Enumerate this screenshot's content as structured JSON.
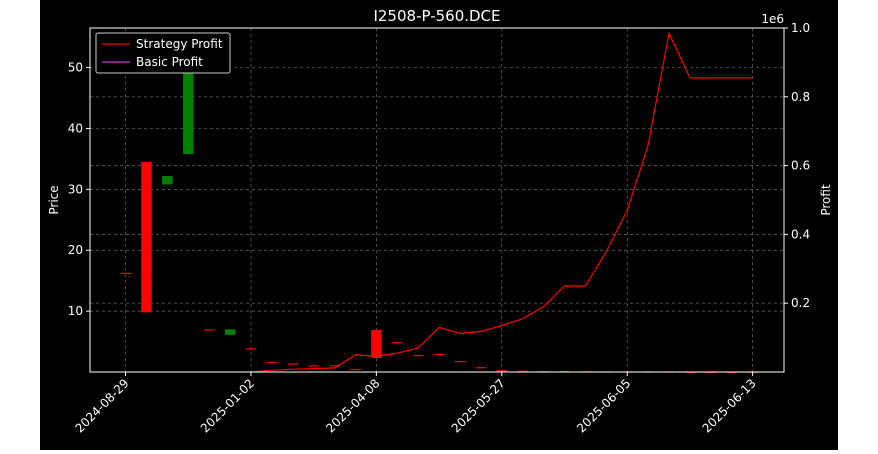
{
  "chart_data": {
    "type": "candlestick-with-line",
    "title": "I2508-P-560.DCE",
    "left_axis": {
      "label": "Price",
      "ylim": [
        0,
        56.5
      ],
      "ticks": [
        10,
        20,
        30,
        40,
        50
      ]
    },
    "right_axis": {
      "label": "Profit",
      "multiplier_label": "1e6",
      "ylim": [
        0,
        1.0
      ],
      "ticks": [
        "0.2",
        "0.4",
        "0.6",
        "0.8",
        "1.0"
      ],
      "tick_values": [
        0.2,
        0.4,
        0.6,
        0.8,
        1.0
      ]
    },
    "x_tick_labels": [
      "2024-08-29",
      "2025-01-02",
      "2025-04-08",
      "2025-05-27",
      "2025-06-05",
      "2025-06-13"
    ],
    "x_tick_positions": [
      0,
      6,
      12,
      18,
      24,
      30
    ],
    "xlim": [
      -1.7,
      31.5
    ],
    "legend": {
      "placement": "upper-left",
      "entries": [
        {
          "label": "Strategy Profit",
          "color": "#ff0000"
        },
        {
          "label": "Basic Profit",
          "color": "#cc33cc"
        }
      ]
    },
    "candles": [
      {
        "x": 0,
        "open": 16.3,
        "close": 16.3,
        "color": "#ff0000"
      },
      {
        "x": 1,
        "open": 34.5,
        "close": 9.8,
        "color": "#ff0000"
      },
      {
        "x": 2,
        "open": 30.8,
        "close": 32.2,
        "color": "#008000"
      },
      {
        "x": 3,
        "open": 35.8,
        "close": 54.8,
        "color": "#008000"
      },
      {
        "x": 4,
        "open": 7.0,
        "close": 7.0,
        "color": "#ff0000"
      },
      {
        "x": 5,
        "open": 6.1,
        "close": 7.0,
        "color": "#008000"
      },
      {
        "x": 6,
        "open": 3.9,
        "close": 3.9,
        "color": "#ff0000"
      },
      {
        "x": 7,
        "open": 1.7,
        "close": 1.7,
        "color": "#ff0000"
      },
      {
        "x": 8,
        "open": 1.4,
        "close": 1.4,
        "color": "#ff0000"
      },
      {
        "x": 9,
        "open": 1.1,
        "close": 1.1,
        "color": "#ff0000"
      },
      {
        "x": 10,
        "open": 1.1,
        "close": 1.1,
        "color": "#ff0000"
      },
      {
        "x": 11,
        "open": 0.5,
        "close": 0.5,
        "color": "#ff0000"
      },
      {
        "x": 12,
        "open": 6.9,
        "close": 2.3,
        "color": "#ff0000"
      },
      {
        "x": 13,
        "open": 4.9,
        "close": 4.9,
        "color": "#ff0000"
      },
      {
        "x": 14,
        "open": 2.8,
        "close": 2.8,
        "color": "#ff0000"
      },
      {
        "x": 15,
        "open": 3.0,
        "close": 3.0,
        "color": "#ff0000"
      },
      {
        "x": 16,
        "open": 1.8,
        "close": 1.8,
        "color": "#ff0000"
      },
      {
        "x": 17,
        "open": 0.8,
        "close": 0.8,
        "color": "#ff0000"
      },
      {
        "x": 18,
        "open": 0.3,
        "close": 0.3,
        "color": "#ff0000"
      },
      {
        "x": 19,
        "open": 0.2,
        "close": 0.2,
        "color": "#ff0000"
      },
      {
        "x": 20,
        "open": 0.15,
        "close": 0.15,
        "color": "#008000"
      },
      {
        "x": 21,
        "open": 0.15,
        "close": 0.15,
        "color": "#ff0000"
      },
      {
        "x": 22,
        "open": 0.12,
        "close": 0.12,
        "color": "#ff0000"
      },
      {
        "x": 23,
        "open": 0.1,
        "close": 0.1,
        "color": "#008000"
      },
      {
        "x": 24,
        "open": 0.1,
        "close": 0.1,
        "color": "#ff0000"
      },
      {
        "x": 25,
        "open": 0.1,
        "close": 0.1,
        "color": "#008000"
      },
      {
        "x": 26,
        "open": 0.1,
        "close": 0.1,
        "color": "#ff0000"
      },
      {
        "x": 27,
        "open": 0.05,
        "close": 0.05,
        "color": "#ff0000"
      },
      {
        "x": 28,
        "open": 0.05,
        "close": 0.05,
        "color": "#ff0000"
      },
      {
        "x": 29,
        "open": 0.05,
        "close": 0.05,
        "color": "#ff0000"
      },
      {
        "x": 30,
        "open": 0.05,
        "close": 0.05,
        "color": "#ff0000"
      }
    ],
    "series": [
      {
        "name": "Strategy Profit",
        "color": "#ff0000",
        "x": [
          6,
          7,
          8,
          9,
          10,
          11,
          12,
          13,
          14,
          15,
          16,
          17,
          18,
          19,
          20,
          21,
          22,
          23,
          24,
          25,
          26,
          27,
          28,
          29,
          30
        ],
        "values": [
          0,
          0.005,
          0.008,
          0.01,
          0.012,
          0.05,
          0.045,
          0.055,
          0.07,
          0.13,
          0.112,
          0.118,
          0.135,
          0.155,
          0.19,
          0.25,
          0.25,
          0.35,
          0.47,
          0.66,
          0.985,
          0.855,
          0.855,
          0.855,
          0.855
        ]
      },
      {
        "name": "Basic Profit",
        "color": "#cc33cc",
        "x": [],
        "values": []
      }
    ]
  }
}
